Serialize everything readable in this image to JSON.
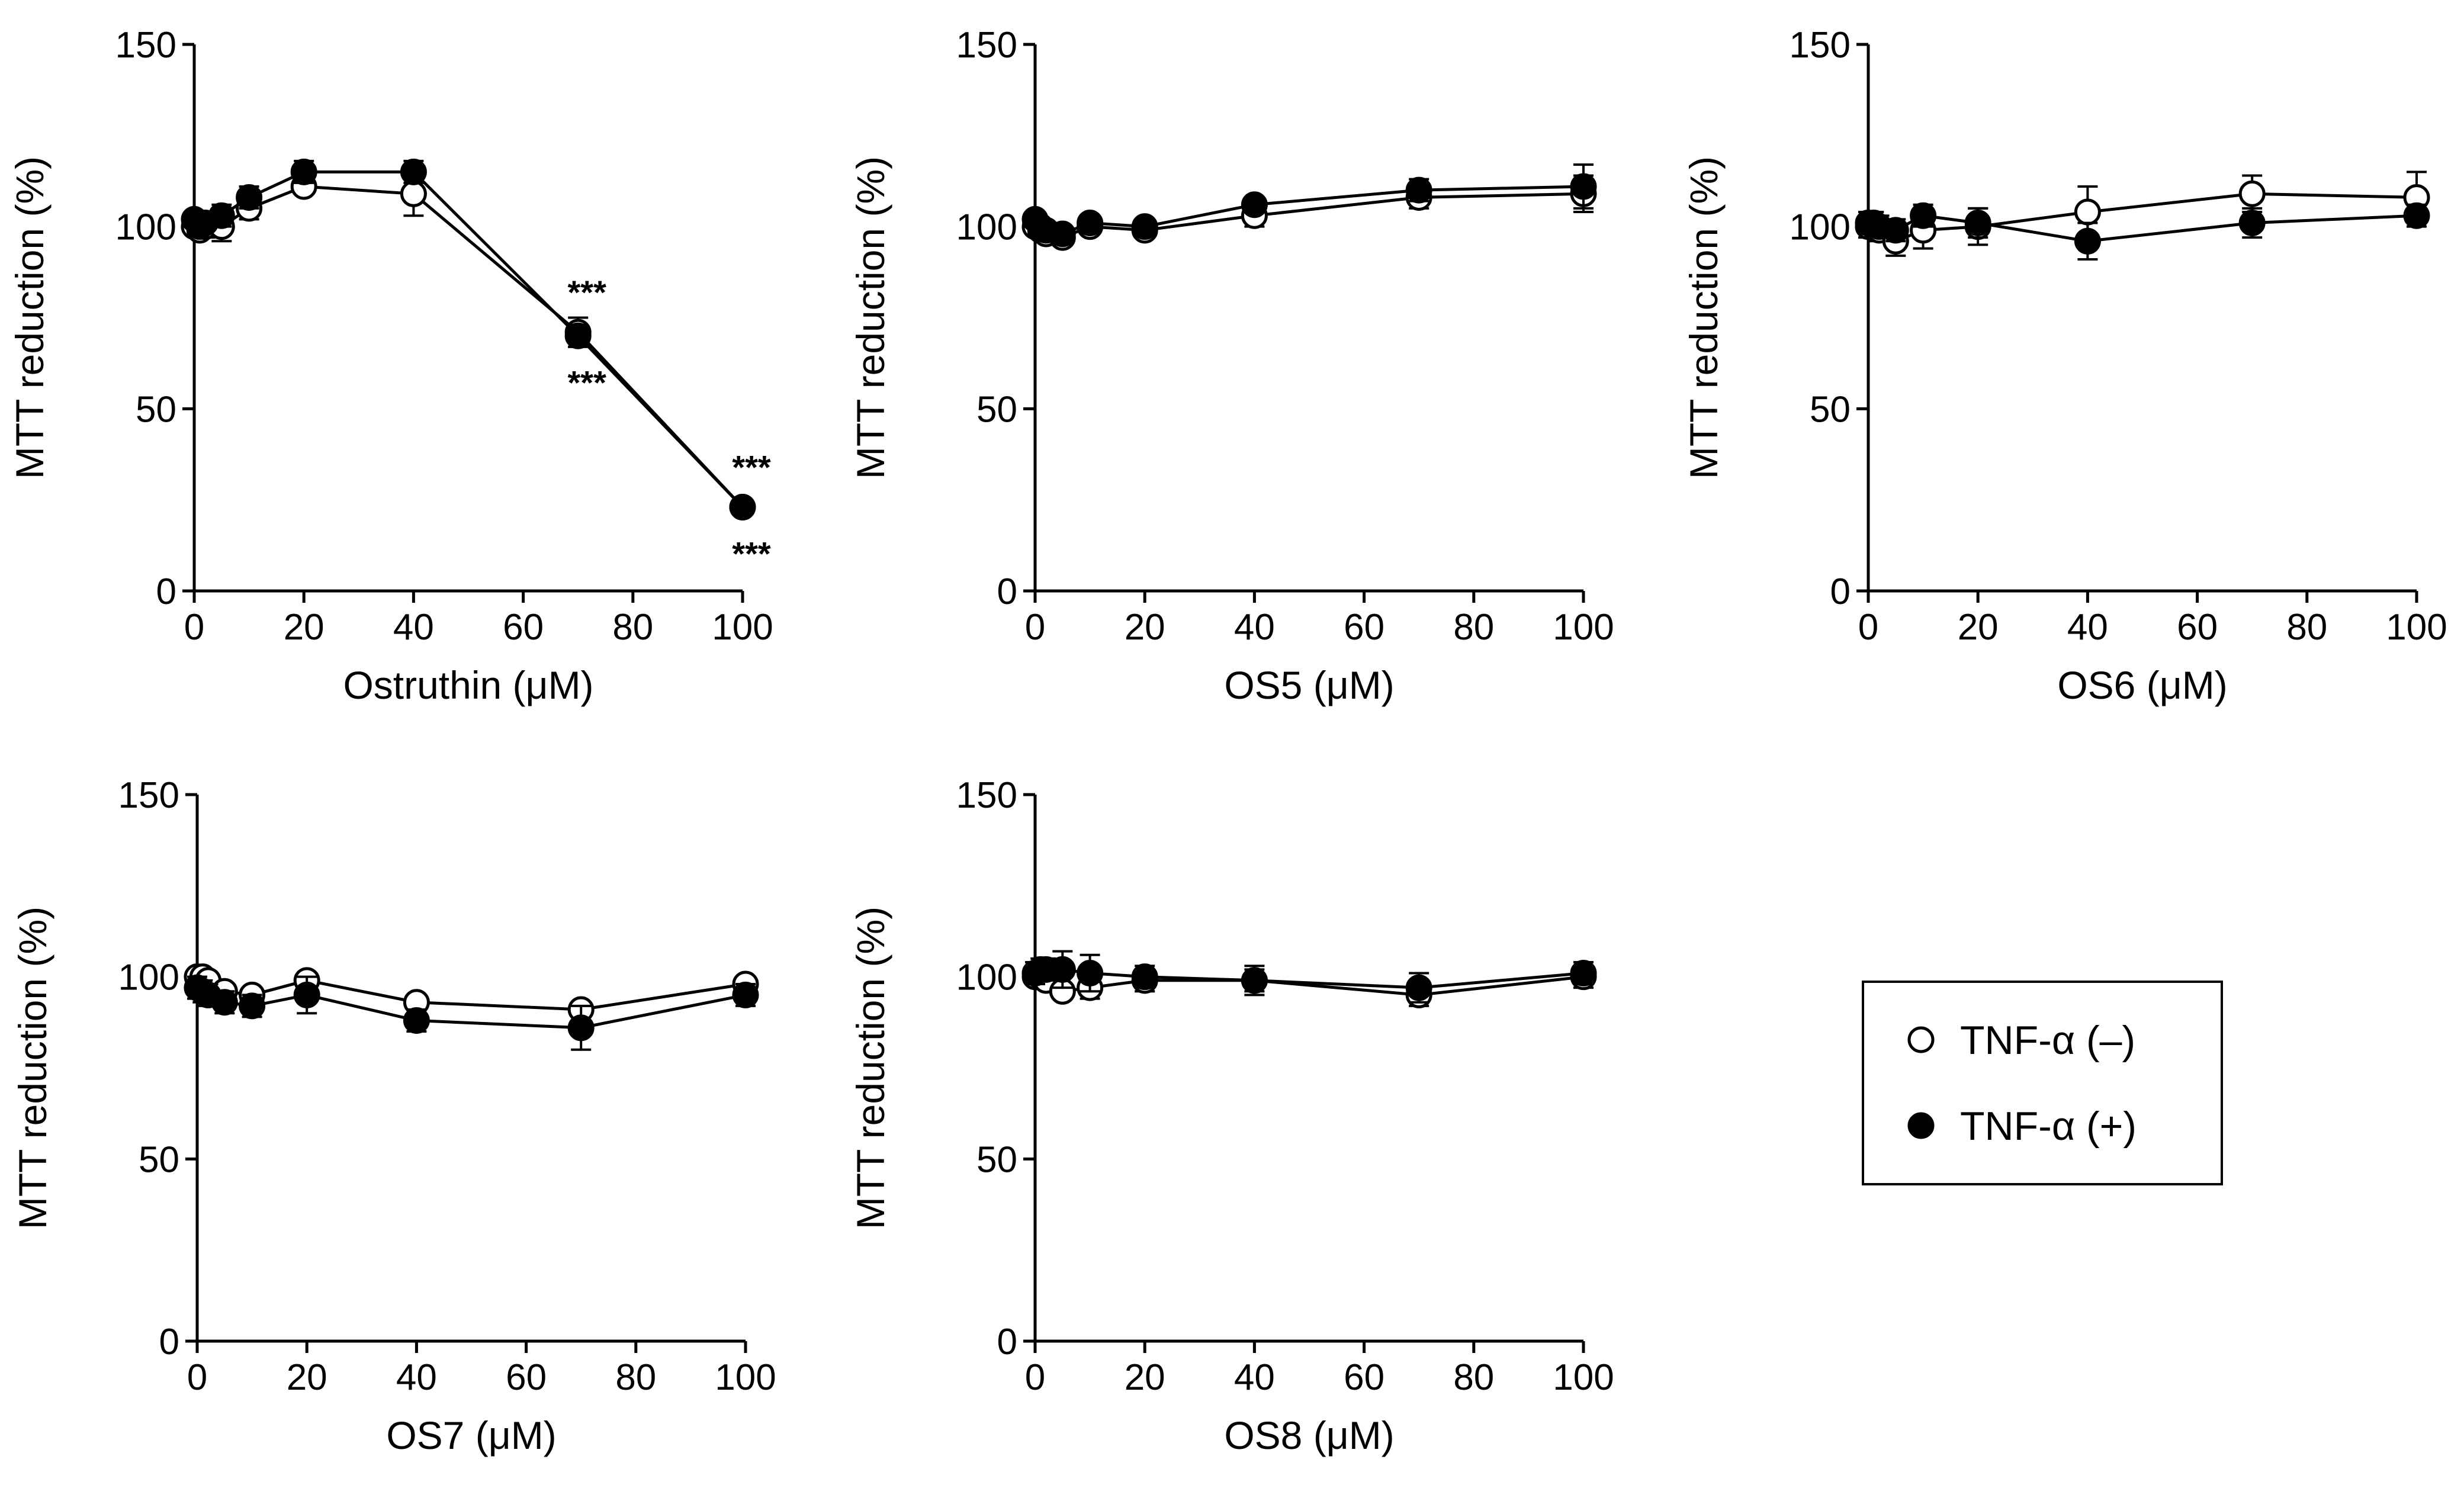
{
  "legend": {
    "items": [
      {
        "label": "TNF-α (–)",
        "marker": "open-circle"
      },
      {
        "label": "TNF-α (+)",
        "marker": "filled-circle"
      }
    ]
  },
  "chart_data": [
    {
      "type": "line",
      "xlabel": "Ostruthin (μM)",
      "ylabel": "MTT reduction (%)",
      "xlim": [
        0,
        100
      ],
      "ylim": [
        0,
        150
      ],
      "xticks": [
        0,
        20,
        40,
        60,
        80,
        100
      ],
      "yticks": [
        0,
        50,
        100,
        150
      ],
      "series": [
        {
          "name": "TNF-α (–)",
          "marker": "open",
          "x": [
            0,
            1,
            2,
            5,
            10,
            20,
            40,
            70,
            100
          ],
          "y": [
            100,
            99,
            100,
            100,
            105,
            111,
            109,
            71,
            23
          ],
          "err": [
            2,
            2,
            3,
            4,
            3,
            2,
            6,
            4,
            2
          ]
        },
        {
          "name": "TNF-α (+)",
          "marker": "filled",
          "x": [
            0,
            1,
            2,
            5,
            10,
            20,
            40,
            70,
            100
          ],
          "y": [
            102,
            100,
            101,
            103,
            108,
            115,
            115,
            70,
            23
          ],
          "err": [
            2,
            2,
            2,
            3,
            3,
            3,
            3,
            3,
            2
          ]
        }
      ],
      "annotations": [
        {
          "text": "***",
          "x": 70,
          "position": "above"
        },
        {
          "text": "***",
          "x": 70,
          "position": "below"
        },
        {
          "text": "***",
          "x": 100,
          "position": "above"
        },
        {
          "text": "***",
          "x": 100,
          "position": "below"
        }
      ]
    },
    {
      "type": "line",
      "xlabel": "OS5 (μM)",
      "ylabel": "MTT reduction (%)",
      "xlim": [
        0,
        100
      ],
      "ylim": [
        0,
        150
      ],
      "xticks": [
        0,
        20,
        40,
        60,
        80,
        100
      ],
      "yticks": [
        0,
        50,
        100,
        150
      ],
      "series": [
        {
          "name": "TNF-α (–)",
          "marker": "open",
          "x": [
            0,
            1,
            2,
            5,
            10,
            20,
            40,
            70,
            100
          ],
          "y": [
            100,
            99,
            98,
            97,
            100,
            99,
            103,
            108,
            109
          ],
          "err": [
            2,
            2,
            2,
            2,
            2,
            2,
            3,
            3,
            5
          ]
        },
        {
          "name": "TNF-α (+)",
          "marker": "filled",
          "x": [
            0,
            1,
            2,
            5,
            10,
            20,
            40,
            70,
            100
          ],
          "y": [
            102,
            100,
            99,
            98,
            101,
            100,
            106,
            110,
            111
          ],
          "err": [
            2,
            2,
            2,
            2,
            2,
            2,
            2,
            3,
            6
          ]
        }
      ],
      "annotations": []
    },
    {
      "type": "line",
      "xlabel": "OS6 (μM)",
      "ylabel": "MTT reduction (%)",
      "xlim": [
        0,
        100
      ],
      "ylim": [
        0,
        150
      ],
      "xticks": [
        0,
        20,
        40,
        60,
        80,
        100
      ],
      "yticks": [
        0,
        50,
        100,
        150
      ],
      "series": [
        {
          "name": "TNF-α (–)",
          "marker": "open",
          "x": [
            0,
            1,
            2,
            5,
            10,
            20,
            40,
            70,
            100
          ],
          "y": [
            100,
            100,
            99,
            96,
            99,
            100,
            104,
            109,
            108
          ],
          "err": [
            3,
            3,
            3,
            4,
            5,
            5,
            7,
            5,
            7
          ]
        },
        {
          "name": "TNF-α (+)",
          "marker": "filled",
          "x": [
            0,
            1,
            2,
            5,
            10,
            20,
            40,
            70,
            100
          ],
          "y": [
            101,
            101,
            100,
            99,
            103,
            101,
            96,
            101,
            103
          ],
          "err": [
            3,
            3,
            3,
            3,
            3,
            4,
            5,
            4,
            3
          ]
        }
      ],
      "annotations": []
    },
    {
      "type": "line",
      "xlabel": "OS7 (μM)",
      "ylabel": "MTT reduction (%)",
      "xlim": [
        0,
        100
      ],
      "ylim": [
        0,
        150
      ],
      "xticks": [
        0,
        20,
        40,
        60,
        80,
        100
      ],
      "yticks": [
        0,
        50,
        100,
        150
      ],
      "series": [
        {
          "name": "TNF-α (–)",
          "marker": "open",
          "x": [
            0,
            1,
            2,
            5,
            10,
            20,
            40,
            70,
            100
          ],
          "y": [
            100,
            100,
            99,
            96,
            95,
            99,
            93,
            91,
            98
          ],
          "err": [
            2,
            2,
            2,
            2,
            2,
            2,
            2,
            2,
            2
          ]
        },
        {
          "name": "TNF-α (+)",
          "marker": "filled",
          "x": [
            0,
            1,
            2,
            5,
            10,
            20,
            40,
            70,
            100
          ],
          "y": [
            97,
            96,
            95,
            93,
            92,
            95,
            88,
            86,
            95
          ],
          "err": [
            3,
            3,
            3,
            3,
            3,
            5,
            3,
            6,
            3
          ]
        }
      ],
      "annotations": []
    },
    {
      "type": "line",
      "xlabel": "OS8 (μM)",
      "ylabel": "MTT reduction (%)",
      "xlim": [
        0,
        100
      ],
      "ylim": [
        0,
        150
      ],
      "xticks": [
        0,
        20,
        40,
        60,
        80,
        100
      ],
      "yticks": [
        0,
        50,
        100,
        150
      ],
      "series": [
        {
          "name": "TNF-α (–)",
          "marker": "open",
          "x": [
            0,
            1,
            2,
            5,
            10,
            20,
            40,
            70,
            100
          ],
          "y": [
            100,
            100,
            99,
            96,
            97,
            99,
            99,
            95,
            100
          ],
          "err": [
            2,
            2,
            2,
            2,
            3,
            3,
            3,
            3,
            3
          ]
        },
        {
          "name": "TNF-α (+)",
          "marker": "filled",
          "x": [
            0,
            1,
            2,
            5,
            10,
            20,
            40,
            70,
            100
          ],
          "y": [
            101,
            102,
            102,
            102,
            101,
            100,
            99,
            97,
            101
          ],
          "err": [
            3,
            3,
            3,
            5,
            5,
            3,
            4,
            4,
            3
          ]
        }
      ],
      "annotations": []
    }
  ]
}
